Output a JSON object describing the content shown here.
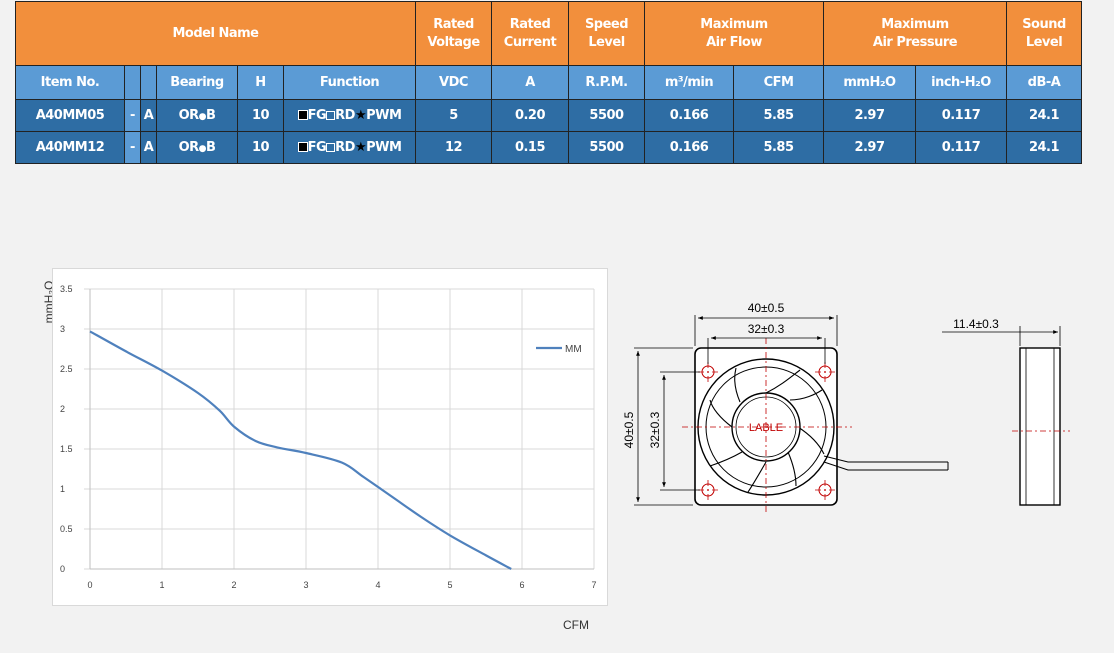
{
  "table": {
    "headers": {
      "model_name": "Model Name",
      "rated_voltage": [
        "Rated",
        "Voltage"
      ],
      "rated_current": [
        "Rated",
        "Current"
      ],
      "speed_level": [
        "Speed",
        "Level"
      ],
      "max_air_flow": [
        "Maximum",
        "Air Flow"
      ],
      "max_air_pressure": [
        "Maximum",
        "Air Pressure"
      ],
      "sound_level": [
        "Sound",
        "Level"
      ]
    },
    "subheaders": {
      "item_no": "Item No.",
      "bearing": "Bearing",
      "h": "H",
      "function": "Function",
      "vdc": "VDC",
      "a": "A",
      "rpm": "R.P.M.",
      "m3min": "m³/min",
      "cfm": "CFM",
      "mmh2o": "mmH₂O",
      "inchh2o": "inch-H₂O",
      "dba": "dB-A"
    },
    "rows": [
      {
        "item": "A40MM05",
        "dash": "-",
        "suffix": "A",
        "bearing_a": "O",
        "bearing_r": "R",
        "bearing_b": "B",
        "h": "10",
        "fn_fg": "FG",
        "fn_rd": "RD",
        "fn_star": "★",
        "fn_pwm": "PWM",
        "vdc": "5",
        "amp": "0.20",
        "rpm": "5500",
        "m3": "0.166",
        "cfm": "5.85",
        "mmh2o": "2.97",
        "inch": "0.117",
        "dba": "24.1"
      },
      {
        "item": "A40MM12",
        "dash": "-",
        "suffix": "A",
        "bearing_a": "O",
        "bearing_r": "R",
        "bearing_b": "B",
        "h": "10",
        "fn_fg": "FG",
        "fn_rd": "RD",
        "fn_star": "★",
        "fn_pwm": "PWM",
        "vdc": "12",
        "amp": "0.15",
        "rpm": "5500",
        "m3": "0.166",
        "cfm": "5.85",
        "mmh2o": "2.97",
        "inch": "0.117",
        "dba": "24.1"
      }
    ]
  },
  "chart_data": {
    "type": "line",
    "xlabel": "CFM",
    "ylabel": "mmH₂O",
    "xlim": [
      0,
      7
    ],
    "ylim": [
      0,
      3.5
    ],
    "x_ticks": [
      "0",
      "1",
      "2",
      "3",
      "4",
      "5",
      "6",
      "7"
    ],
    "y_ticks": [
      "0",
      "0.5",
      "1",
      "1.5",
      "2",
      "2.5",
      "3",
      "3.5"
    ],
    "grid": true,
    "legend_position": "top-right",
    "series": [
      {
        "name": "MM",
        "color": "#4f81bd",
        "x": [
          0,
          0.5,
          1.0,
          1.5,
          1.8,
          2.0,
          2.3,
          2.6,
          3.0,
          3.5,
          3.8,
          4.2,
          4.6,
          5.0,
          5.5,
          5.85
        ],
        "y": [
          2.97,
          2.72,
          2.48,
          2.2,
          1.98,
          1.78,
          1.6,
          1.52,
          1.45,
          1.33,
          1.15,
          0.9,
          0.65,
          0.42,
          0.17,
          0.0
        ]
      }
    ]
  },
  "drawing": {
    "dim_width_outer": "40±0.5",
    "dim_width_inner": "32±0.3",
    "dim_height_outer": "40±0.5",
    "dim_height_inner": "32±0.3",
    "dim_thickness": "11.4±0.3",
    "hub_label": "LABLE"
  }
}
